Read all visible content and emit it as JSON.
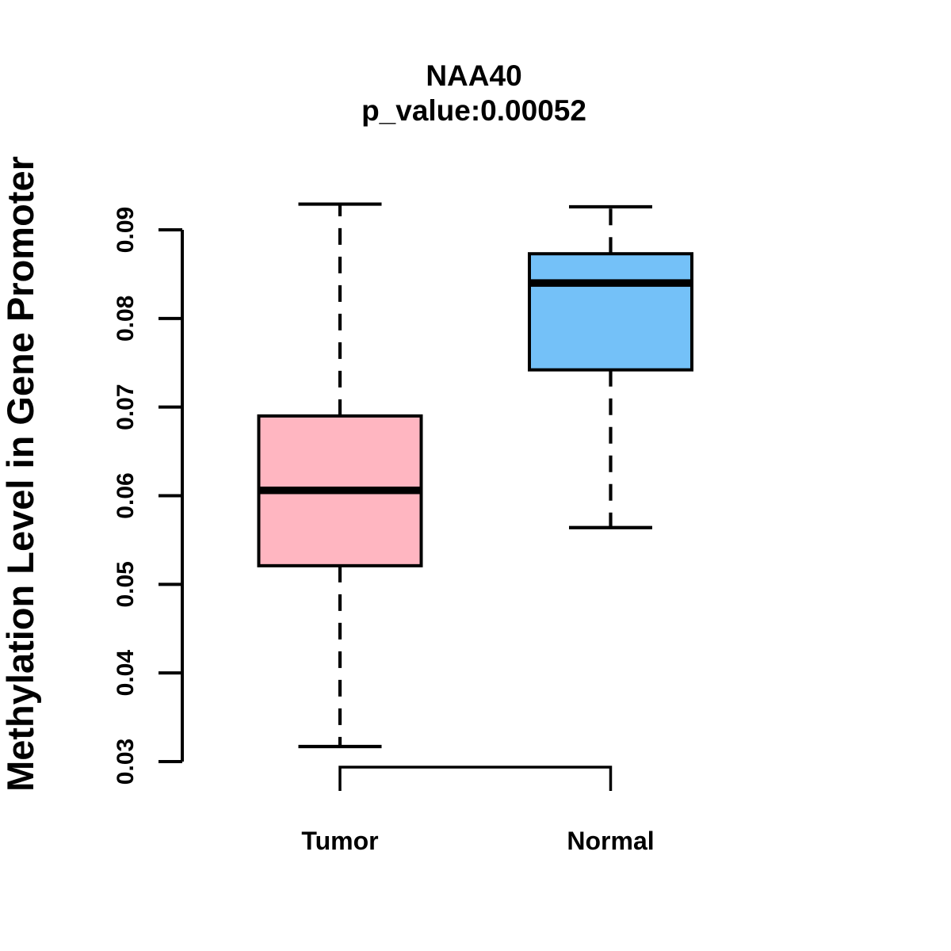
{
  "figure": {
    "title": "NAA40",
    "subtitle": "p_value:0.00052",
    "p_value": "0.00052",
    "gene": "NAA40"
  },
  "colors": {
    "tumor_box_fill": "#FFB6C1",
    "normal_box_fill": "#74C1F8",
    "line": "#000000",
    "background": "#FFFFFF"
  },
  "chart_data": {
    "type": "boxplot",
    "title": "NAA40",
    "subtitle": "p_value:0.00052",
    "xlabel": "",
    "ylabel": "Methylation Level in Gene Promoter",
    "ylim": [
      0.03,
      0.09
    ],
    "yticks": [
      0.03,
      0.04,
      0.05,
      0.06,
      0.07,
      0.08,
      0.09
    ],
    "ytick_labels": [
      "0.03",
      "0.04",
      "0.05",
      "0.06",
      "0.07",
      "0.08",
      "0.09"
    ],
    "grid": false,
    "legend": "none",
    "categories": [
      "Tumor",
      "Normal"
    ],
    "groups": [
      {
        "label": "Tumor",
        "fill": "#FFB6C1",
        "whisker_low": 0.0317,
        "q1": 0.0521,
        "median": 0.0606,
        "q3": 0.069,
        "whisker_high": 0.0929
      },
      {
        "label": "Normal",
        "fill": "#74C1F8",
        "whisker_low": 0.0564,
        "q1": 0.0742,
        "median": 0.084,
        "q3": 0.0873,
        "whisker_high": 0.0926
      }
    ]
  }
}
